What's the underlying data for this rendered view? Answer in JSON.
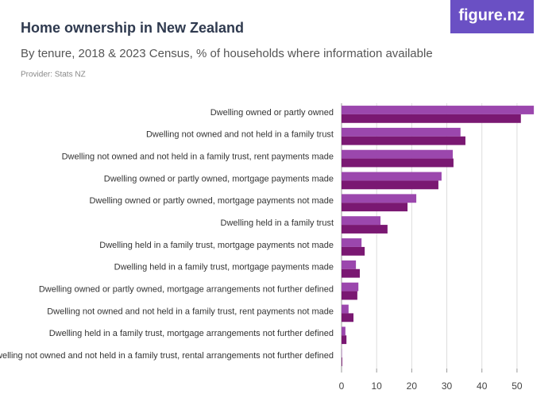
{
  "logo": "figure.nz",
  "chart_data": {
    "type": "bar",
    "orientation": "horizontal",
    "title": "Home ownership in New Zealand",
    "subtitle": "By tenure, 2018 & 2023 Census, % of households where information available",
    "source": "Provider: Stats NZ",
    "categories": [
      "Dwelling owned or partly owned",
      "Dwelling not owned and not held in a family trust",
      "Dwelling not owned and not held in a family trust, rent payments made",
      "Dwelling owned or partly owned, mortgage payments made",
      "Dwelling owned or partly owned, mortgage payments not made",
      "Dwelling held in a family trust",
      "Dwelling held in a family trust, mortgage payments not made",
      "Dwelling held in a family trust, mortgage payments made",
      "Dwelling owned or partly owned, mortgage arrangements not further defined",
      "Dwelling not owned and not held in a family trust, rent payments not made",
      "Dwelling held in a family trust, mortgage arrangements not further defined",
      "Dwelling not owned and not held in a family trust, rental arrangements not further defined"
    ],
    "series": [
      {
        "color": "#9b47ad",
        "values": [
          54.8,
          33.9,
          31.7,
          28.5,
          21.3,
          11.1,
          5.7,
          4.1,
          4.8,
          2.0,
          1.1,
          0.1
        ]
      },
      {
        "color": "#7a1872",
        "values": [
          51.1,
          35.3,
          31.9,
          27.6,
          18.8,
          13.1,
          6.6,
          5.2,
          4.5,
          3.4,
          1.4,
          0.2
        ]
      }
    ],
    "xlim": [
      0,
      55
    ],
    "xticks": [
      0,
      10,
      20,
      30,
      40,
      50
    ],
    "grid": true
  }
}
